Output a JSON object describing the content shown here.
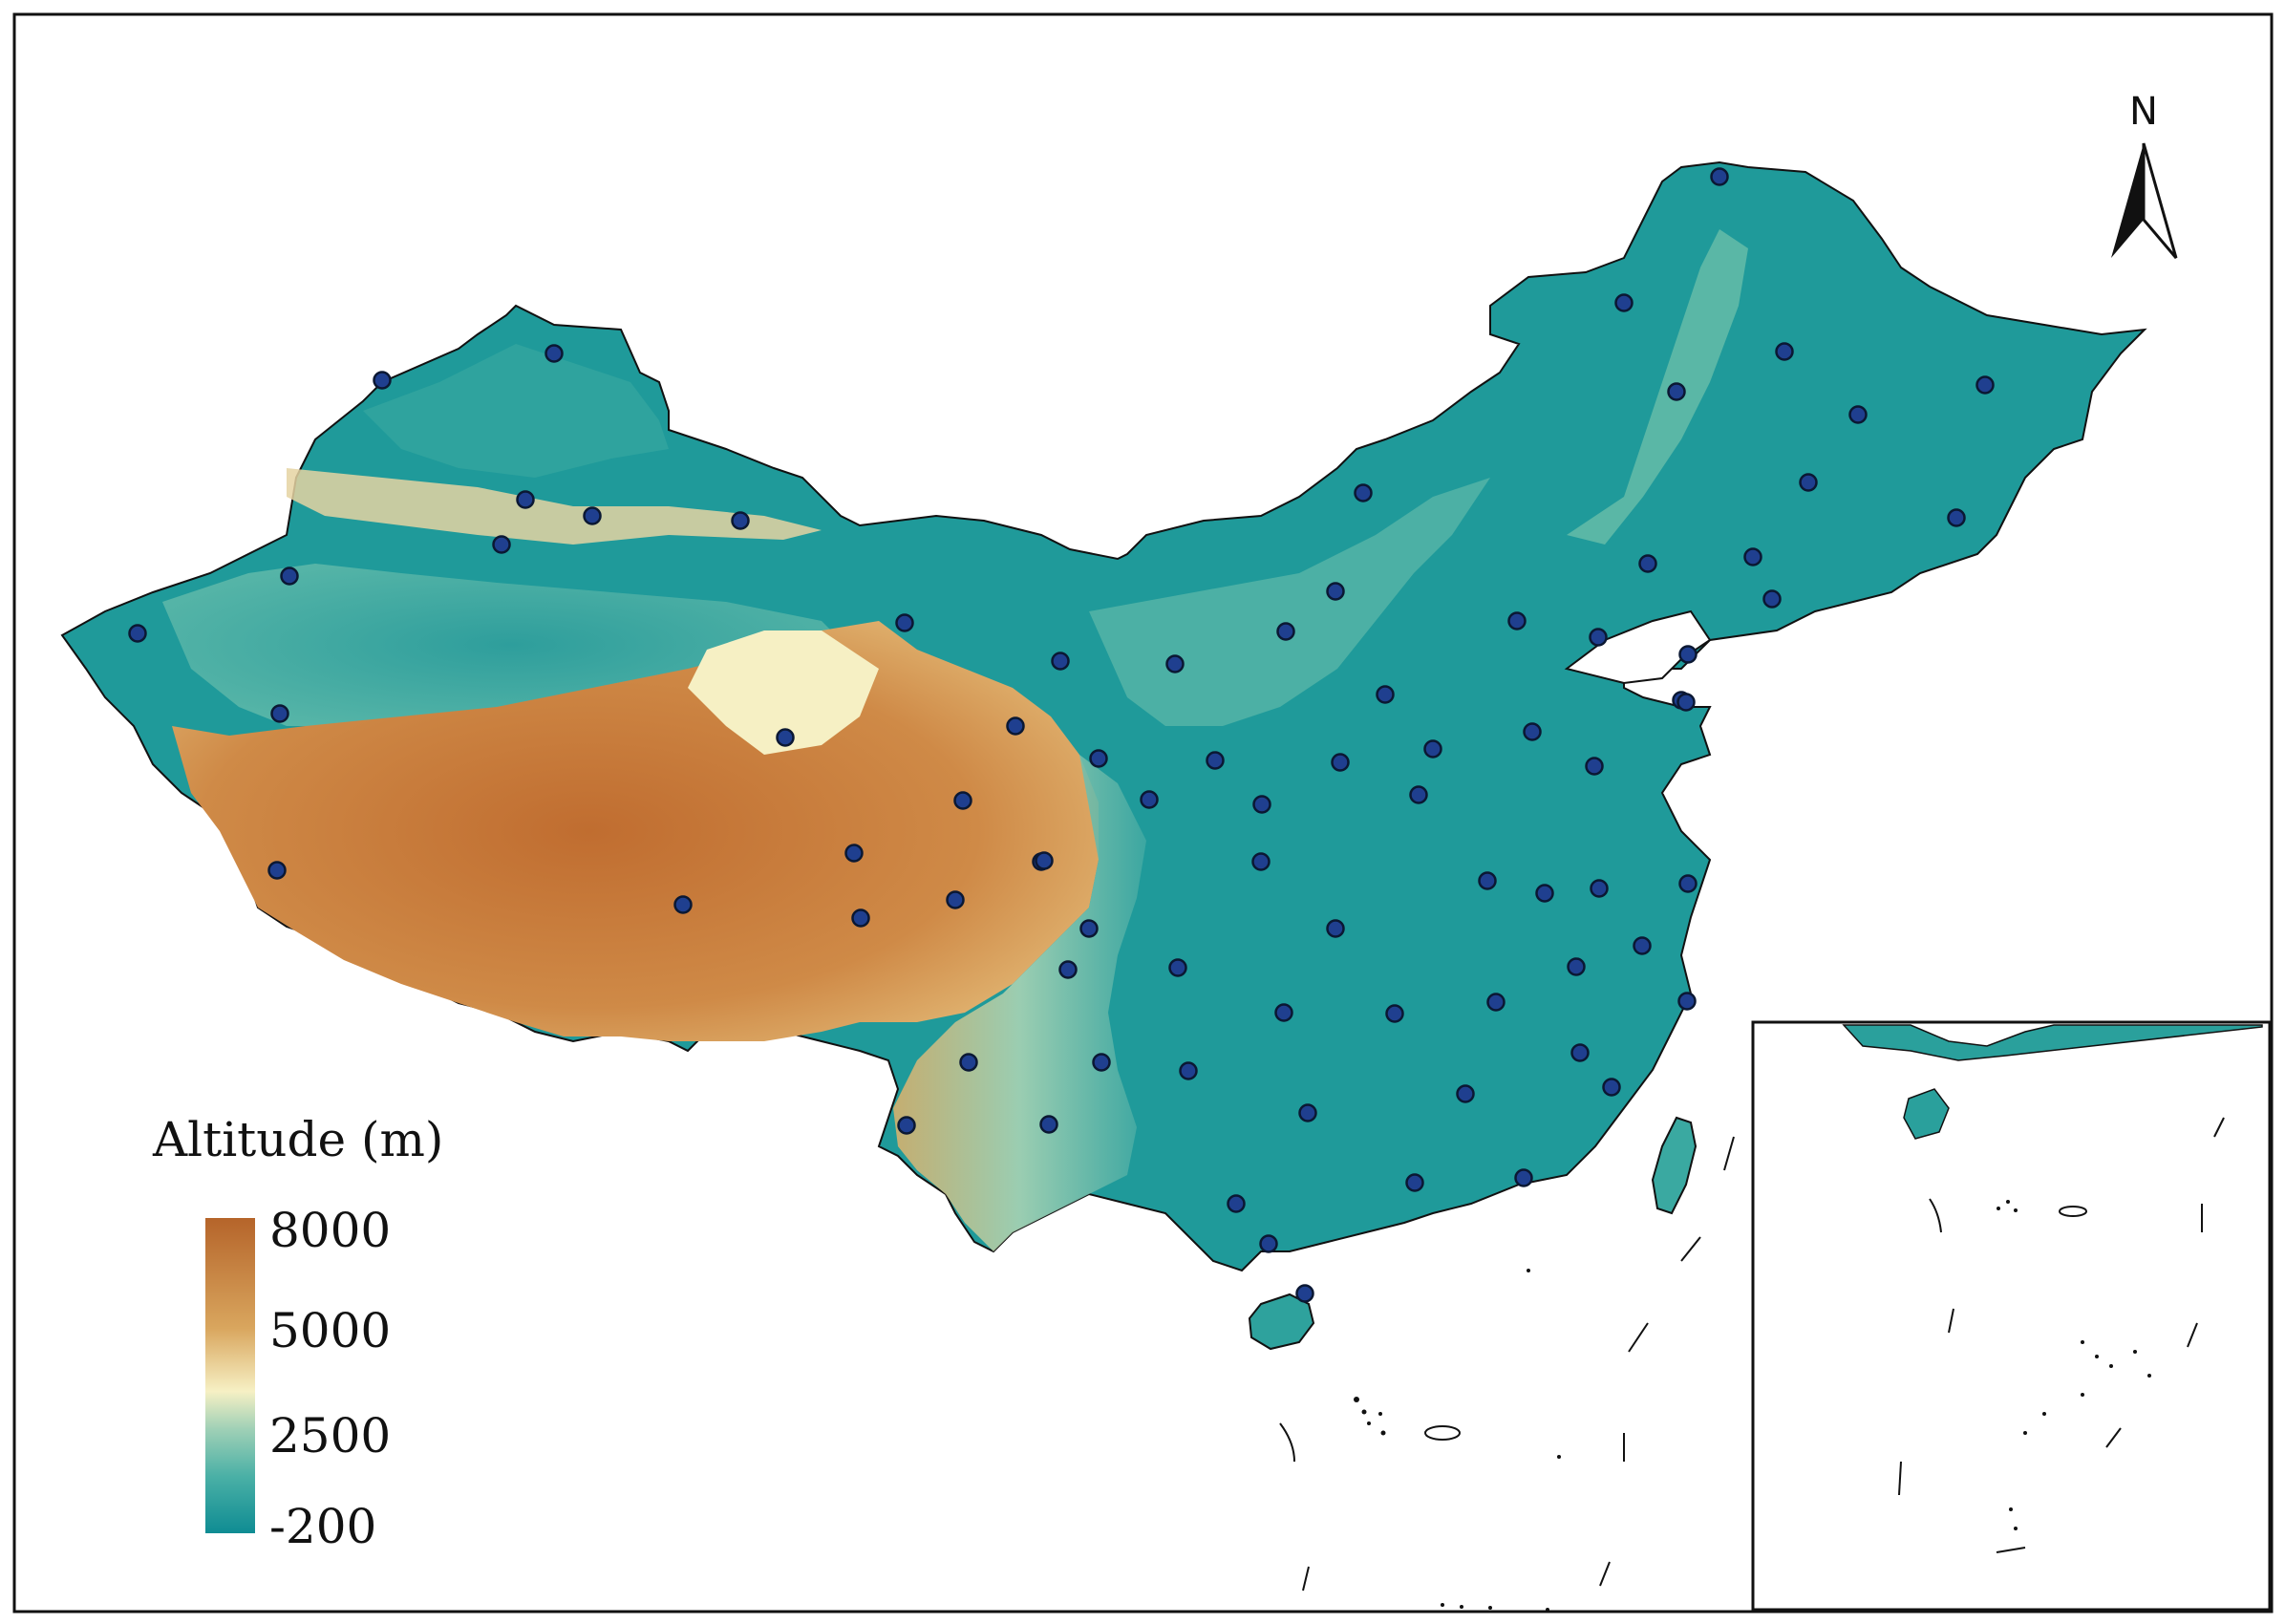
{
  "legend": {
    "title": "Altitude (m)",
    "ticks": [
      "8000",
      "5000",
      "2500",
      "-200"
    ],
    "colors": [
      "#b5642a",
      "#d9a65e",
      "#f6f0c4",
      "#9fd0b6",
      "#4ab0a6",
      "#0f8c93"
    ]
  },
  "north_arrow": {
    "letter": "N",
    "icon": "north-arrow-icon"
  },
  "map": {
    "region": "China",
    "colors": {
      "frame": "#111111",
      "station_fill": "#1f3f8f",
      "station_stroke": "#0b1833",
      "lowland": "#0f8c93",
      "midland": "#4fb3a8",
      "highland": "#e7c684",
      "plateau": "#c77a3a",
      "desert": "#f6f0c4"
    },
    "station_count": 80
  }
}
